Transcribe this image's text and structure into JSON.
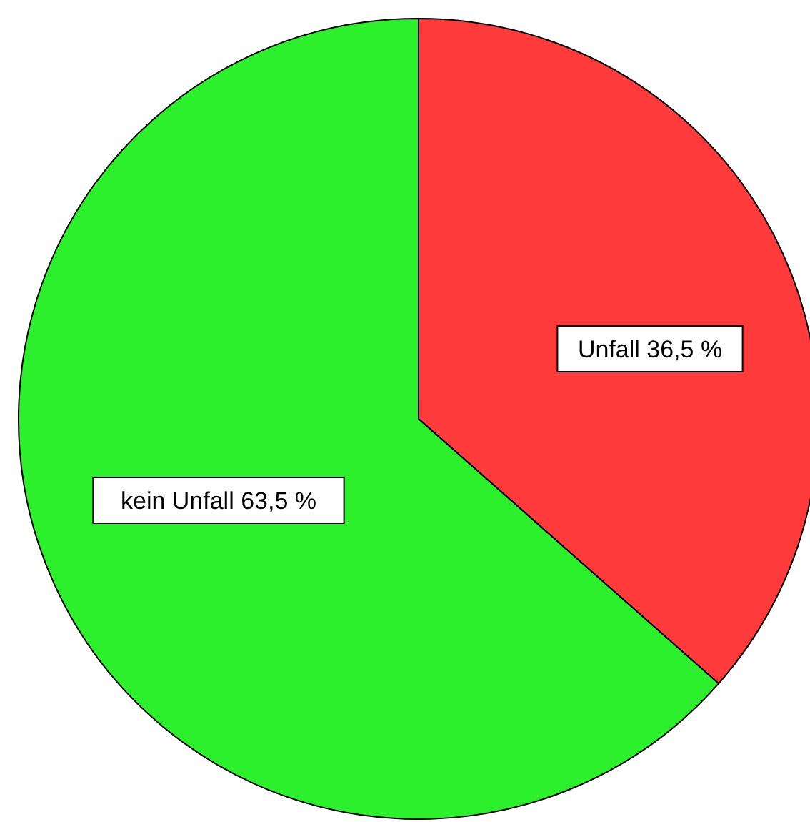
{
  "chart_data": {
    "type": "pie",
    "categories": [
      "Unfall",
      "kein Unfall"
    ],
    "values": [
      36.5,
      63.5
    ],
    "colors": [
      "#ff3a3a",
      "#2cf02c"
    ],
    "value_labels": [
      "36,5 %",
      "63,5 %"
    ]
  }
}
